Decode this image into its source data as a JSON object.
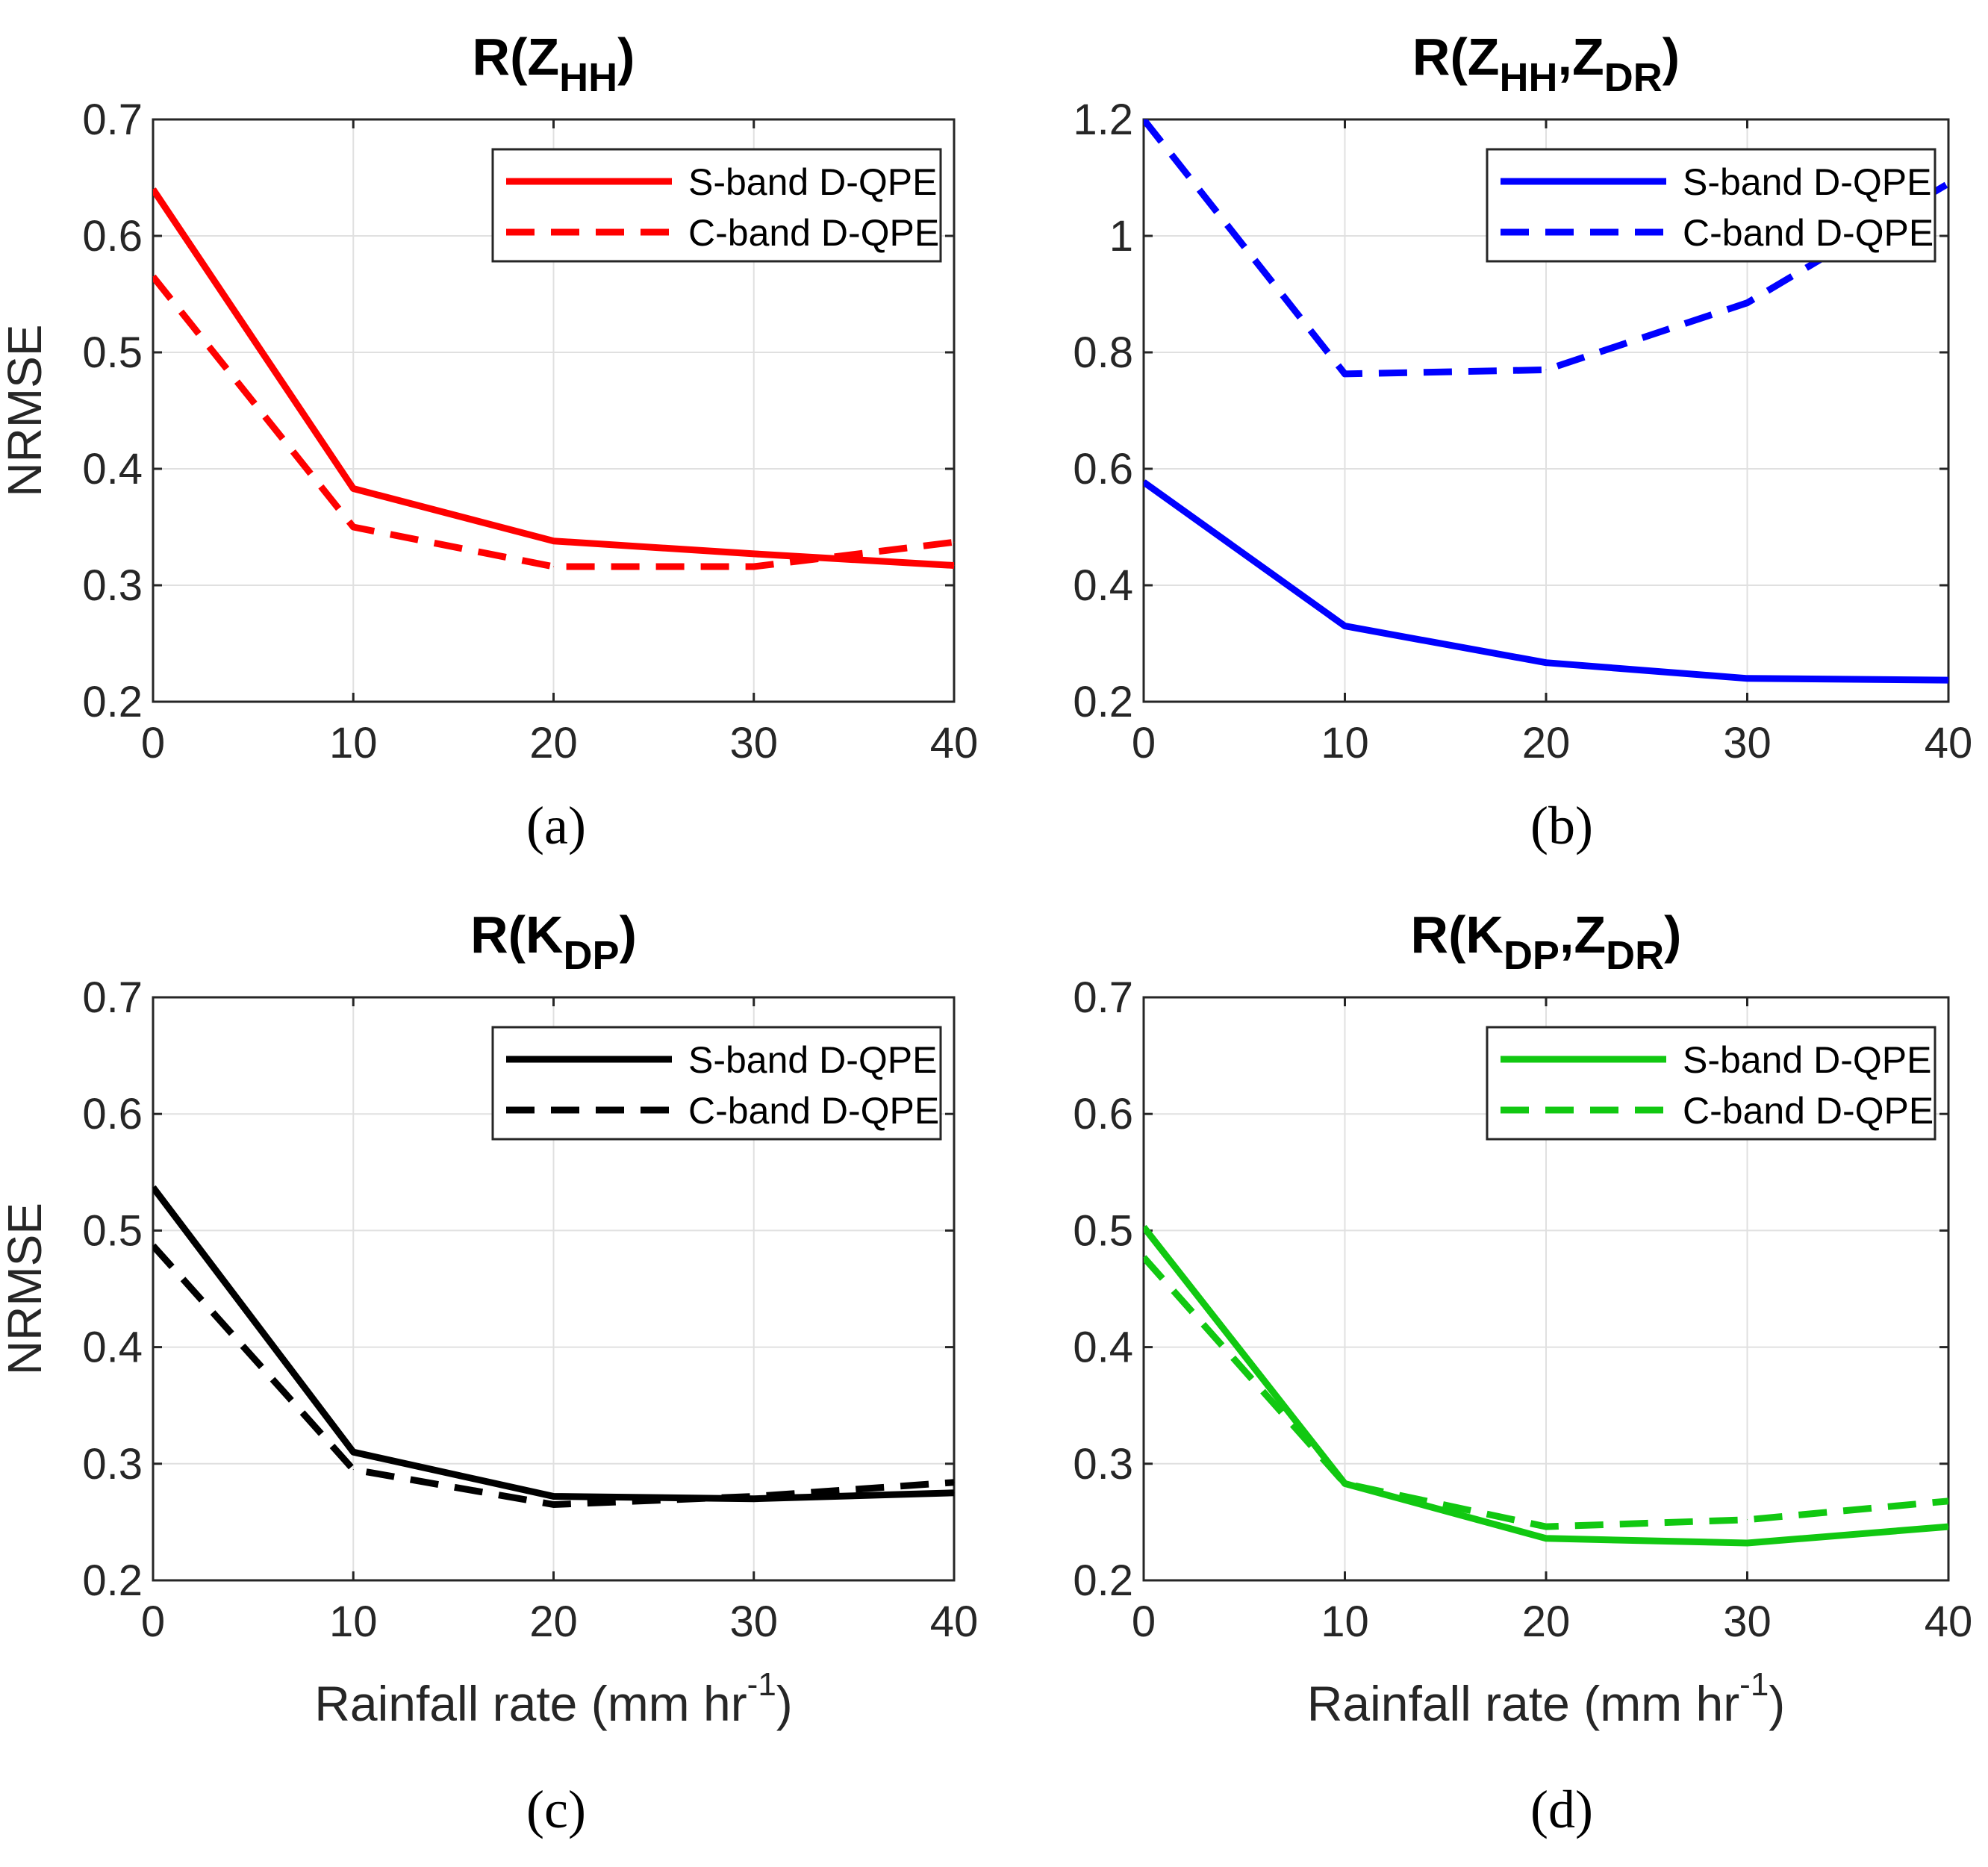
{
  "chart_data": [
    {
      "type": "line",
      "panel": "a",
      "caption": "(a)",
      "title": {
        "main": "R(Z",
        "sub1": "HH",
        "sep": "",
        "main2": "",
        "sub2": "",
        "close": ")"
      },
      "color": "#ff0000",
      "xlabel": "",
      "ylabel": "NRMSE",
      "x": [
        0,
        10,
        20,
        30,
        40
      ],
      "xlim": [
        0,
        40
      ],
      "ylim": [
        0.2,
        0.7
      ],
      "xticks": [
        0,
        10,
        20,
        30,
        40
      ],
      "yticks": [
        0.2,
        0.3,
        0.4,
        0.5,
        0.6,
        0.7
      ],
      "ytick_labels": [
        "0.2",
        "0.3",
        "0.4",
        "0.5",
        "0.6",
        "0.7"
      ],
      "legend_loc": "top-right",
      "series": [
        {
          "name": "S-band D-QPE",
          "style": "solid",
          "values": [
            0.64,
            0.383,
            0.338,
            0.327,
            0.317
          ]
        },
        {
          "name": "C-band D-QPE",
          "style": "dashed",
          "values": [
            0.565,
            0.35,
            0.316,
            0.316,
            0.337
          ]
        }
      ]
    },
    {
      "type": "line",
      "panel": "b",
      "caption": "(b)",
      "title": {
        "main": "R(Z",
        "sub1": "HH",
        "sep": ",Z",
        "main2": "",
        "sub2": "DR",
        "close": ")"
      },
      "color": "#0000ff",
      "xlabel": "",
      "ylabel": "",
      "x": [
        0,
        10,
        20,
        30,
        40
      ],
      "xlim": [
        0,
        40
      ],
      "ylim": [
        0.2,
        1.2
      ],
      "xticks": [
        0,
        10,
        20,
        30,
        40
      ],
      "yticks": [
        0.2,
        0.4,
        0.6,
        0.8,
        1.0,
        1.2
      ],
      "ytick_labels": [
        "0.2",
        "0.4",
        "0.6",
        "0.8",
        "1",
        "1.2"
      ],
      "legend_loc": "top-right",
      "series": [
        {
          "name": "S-band D-QPE",
          "style": "solid",
          "values": [
            0.577,
            0.33,
            0.267,
            0.24,
            0.237
          ]
        },
        {
          "name": "C-band D-QPE",
          "style": "dashed",
          "values": [
            1.2,
            0.763,
            0.77,
            0.885,
            1.09
          ]
        }
      ]
    },
    {
      "type": "line",
      "panel": "c",
      "caption": "(c)",
      "title": {
        "main": "R(K",
        "sub1": "DP",
        "sep": "",
        "main2": "",
        "sub2": "",
        "close": ")"
      },
      "color": "#000000",
      "xlabel": "Rainfall rate (mm hr",
      "xlabel_sup": "-1",
      "xlabel_close": ")",
      "ylabel": "NRMSE",
      "x": [
        0,
        10,
        20,
        30,
        40
      ],
      "xlim": [
        0,
        40
      ],
      "ylim": [
        0.2,
        0.7
      ],
      "xticks": [
        0,
        10,
        20,
        30,
        40
      ],
      "yticks": [
        0.2,
        0.3,
        0.4,
        0.5,
        0.6,
        0.7
      ],
      "ytick_labels": [
        "0.2",
        "0.3",
        "0.4",
        "0.5",
        "0.6",
        "0.7"
      ],
      "legend_loc": "top-right",
      "series": [
        {
          "name": "S-band D-QPE",
          "style": "solid",
          "values": [
            0.537,
            0.31,
            0.272,
            0.27,
            0.275
          ]
        },
        {
          "name": "C-band D-QPE",
          "style": "dashed",
          "values": [
            0.487,
            0.295,
            0.265,
            0.272,
            0.284
          ]
        }
      ]
    },
    {
      "type": "line",
      "panel": "d",
      "caption": "(d)",
      "title": {
        "main": "R(K",
        "sub1": "DP",
        "sep": ",Z",
        "main2": "",
        "sub2": "DR",
        "close": ")"
      },
      "color": "#11c811",
      "xlabel": "Rainfall rate (mm hr",
      "xlabel_sup": "-1",
      "xlabel_close": ")",
      "ylabel": "",
      "x": [
        0,
        10,
        20,
        30,
        40
      ],
      "xlim": [
        0,
        40
      ],
      "ylim": [
        0.2,
        0.7
      ],
      "xticks": [
        0,
        10,
        20,
        30,
        40
      ],
      "yticks": [
        0.2,
        0.3,
        0.4,
        0.5,
        0.6,
        0.7
      ],
      "ytick_labels": [
        "0.2",
        "0.3",
        "0.4",
        "0.5",
        "0.6",
        "0.7"
      ],
      "legend_loc": "top-right",
      "series": [
        {
          "name": "S-band D-QPE",
          "style": "solid",
          "values": [
            0.503,
            0.283,
            0.236,
            0.232,
            0.246
          ]
        },
        {
          "name": "C-band D-QPE",
          "style": "dashed",
          "values": [
            0.477,
            0.283,
            0.246,
            0.252,
            0.268
          ]
        }
      ]
    }
  ]
}
